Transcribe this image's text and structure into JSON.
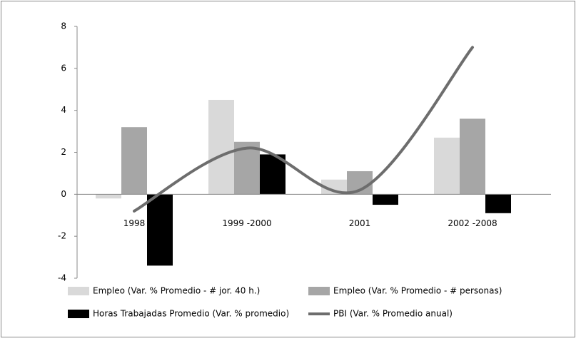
{
  "chart_data": {
    "type": "bar",
    "categories": [
      "1998",
      "1999 -2000",
      "2001",
      "2002 -2008"
    ],
    "series": [
      {
        "name": "Empleo (Var. % Promedio - # jor. 40 h.)",
        "color": "#d9d9d9",
        "values": [
          -0.2,
          4.5,
          0.7,
          2.7
        ]
      },
      {
        "name": "Empleo (Var. % Promedio - # personas)",
        "color": "#a6a6a6",
        "values": [
          3.2,
          2.5,
          1.1,
          3.6
        ]
      },
      {
        "name": "Horas Trabajadas Promedio (Var. % promedio)",
        "color": "#000000",
        "values": [
          -3.4,
          1.9,
          -0.5,
          -0.9
        ]
      },
      {
        "name": "PBI (Var. % Promedio anual)",
        "color": "#6d6d6d",
        "type": "line",
        "values": [
          -0.8,
          2.2,
          0.2,
          7.0
        ]
      }
    ],
    "ylim": [
      -4,
      8
    ],
    "yticks": [
      -4,
      -2,
      0,
      2,
      4,
      6,
      8
    ],
    "grid": false
  }
}
